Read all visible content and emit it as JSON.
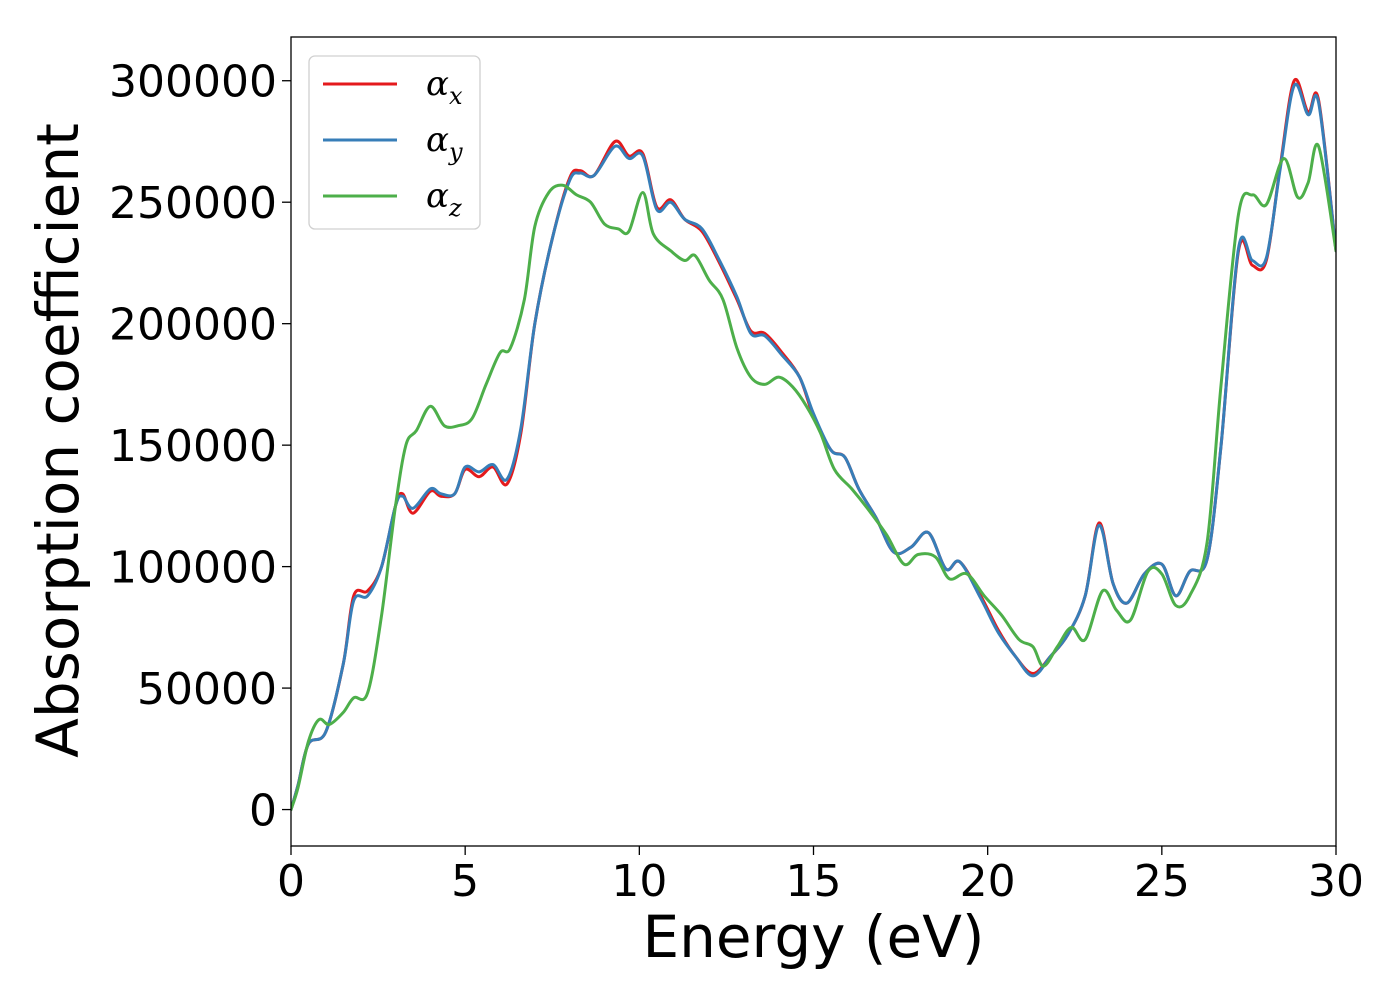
{
  "chart_data": {
    "type": "line",
    "xlabel": "Energy (eV)",
    "ylabel": "Absorption coefficient",
    "xlim": [
      0,
      30
    ],
    "ylim": [
      -15000,
      318000
    ],
    "xticks": [
      0,
      5,
      10,
      15,
      20,
      25,
      30
    ],
    "xtick_labels": [
      "0",
      "5",
      "10",
      "15",
      "20",
      "25",
      "30"
    ],
    "yticks": [
      0,
      50000,
      100000,
      150000,
      200000,
      250000,
      300000
    ],
    "ytick_labels": [
      "0",
      "50000",
      "100000",
      "150000",
      "200000",
      "250000",
      "300000"
    ],
    "grid": false,
    "legend_position": "top-left",
    "series": [
      {
        "name": "α",
        "subscript": "x",
        "color": "#e41a1c",
        "points": [
          [
            0,
            0
          ],
          [
            0.2,
            10000
          ],
          [
            0.5,
            27000
          ],
          [
            1,
            32000
          ],
          [
            1.5,
            60000
          ],
          [
            1.8,
            88000
          ],
          [
            2.2,
            90000
          ],
          [
            2.6,
            100000
          ],
          [
            3,
            125000
          ],
          [
            3.2,
            130000
          ],
          [
            3.5,
            122000
          ],
          [
            4,
            131000
          ],
          [
            4.3,
            129000
          ],
          [
            4.7,
            130000
          ],
          [
            5,
            140000
          ],
          [
            5.4,
            137000
          ],
          [
            5.8,
            141000
          ],
          [
            6.2,
            134000
          ],
          [
            6.6,
            155000
          ],
          [
            7,
            200000
          ],
          [
            7.5,
            235000
          ],
          [
            8,
            260000
          ],
          [
            8.3,
            263000
          ],
          [
            8.7,
            261000
          ],
          [
            9.3,
            275000
          ],
          [
            9.7,
            269000
          ],
          [
            10.1,
            270000
          ],
          [
            10.5,
            248000
          ],
          [
            10.9,
            251000
          ],
          [
            11.3,
            243000
          ],
          [
            11.8,
            238000
          ],
          [
            12.3,
            225000
          ],
          [
            12.8,
            210000
          ],
          [
            13.2,
            197000
          ],
          [
            13.6,
            196000
          ],
          [
            14.1,
            188000
          ],
          [
            14.6,
            178000
          ],
          [
            15,
            162000
          ],
          [
            15.5,
            148000
          ],
          [
            15.9,
            145000
          ],
          [
            16.3,
            132000
          ],
          [
            16.8,
            120000
          ],
          [
            17.3,
            106000
          ],
          [
            17.8,
            108000
          ],
          [
            18.3,
            114000
          ],
          [
            18.8,
            99000
          ],
          [
            19.2,
            102000
          ],
          [
            19.8,
            88000
          ],
          [
            20.3,
            74000
          ],
          [
            20.8,
            63000
          ],
          [
            21.3,
            56000
          ],
          [
            21.8,
            63000
          ],
          [
            22.3,
            72000
          ],
          [
            22.8,
            88000
          ],
          [
            23.2,
            118000
          ],
          [
            23.6,
            93000
          ],
          [
            24,
            85000
          ],
          [
            24.5,
            97000
          ],
          [
            25,
            101000
          ],
          [
            25.4,
            88000
          ],
          [
            25.8,
            98000
          ],
          [
            26.3,
            103000
          ],
          [
            26.7,
            150000
          ],
          [
            27.2,
            230000
          ],
          [
            27.6,
            224000
          ],
          [
            28,
            226000
          ],
          [
            28.4,
            265000
          ],
          [
            28.8,
            300000
          ],
          [
            29.2,
            287000
          ],
          [
            29.5,
            292000
          ],
          [
            30,
            230000
          ]
        ]
      },
      {
        "name": "α",
        "subscript": "y",
        "color": "#377eb8",
        "points": [
          [
            0,
            0
          ],
          [
            0.2,
            10000
          ],
          [
            0.5,
            27000
          ],
          [
            1,
            32000
          ],
          [
            1.5,
            60000
          ],
          [
            1.8,
            86000
          ],
          [
            2.2,
            88000
          ],
          [
            2.6,
            100000
          ],
          [
            3,
            125000
          ],
          [
            3.2,
            129000
          ],
          [
            3.5,
            124000
          ],
          [
            4,
            132000
          ],
          [
            4.3,
            130000
          ],
          [
            4.7,
            130000
          ],
          [
            5,
            141000
          ],
          [
            5.4,
            139000
          ],
          [
            5.8,
            142000
          ],
          [
            6.2,
            136000
          ],
          [
            6.6,
            157000
          ],
          [
            7,
            200000
          ],
          [
            7.5,
            235000
          ],
          [
            8,
            259000
          ],
          [
            8.3,
            262000
          ],
          [
            8.7,
            261000
          ],
          [
            9.3,
            273000
          ],
          [
            9.7,
            268000
          ],
          [
            10.1,
            269000
          ],
          [
            10.5,
            247000
          ],
          [
            10.9,
            250000
          ],
          [
            11.3,
            243000
          ],
          [
            11.8,
            239000
          ],
          [
            12.3,
            226000
          ],
          [
            12.8,
            211000
          ],
          [
            13.2,
            196000
          ],
          [
            13.6,
            195000
          ],
          [
            14.1,
            187000
          ],
          [
            14.6,
            178000
          ],
          [
            15,
            163000
          ],
          [
            15.5,
            148000
          ],
          [
            15.9,
            145000
          ],
          [
            16.3,
            132000
          ],
          [
            16.8,
            120000
          ],
          [
            17.3,
            106000
          ],
          [
            17.8,
            108000
          ],
          [
            18.3,
            114000
          ],
          [
            18.8,
            99000
          ],
          [
            19.2,
            102000
          ],
          [
            19.8,
            87000
          ],
          [
            20.3,
            73000
          ],
          [
            20.8,
            63000
          ],
          [
            21.3,
            55000
          ],
          [
            21.8,
            63000
          ],
          [
            22.3,
            72000
          ],
          [
            22.8,
            88000
          ],
          [
            23.2,
            117000
          ],
          [
            23.6,
            93000
          ],
          [
            24,
            85000
          ],
          [
            24.5,
            97000
          ],
          [
            25,
            101000
          ],
          [
            25.4,
            88000
          ],
          [
            25.8,
            98000
          ],
          [
            26.3,
            103000
          ],
          [
            26.7,
            150000
          ],
          [
            27.2,
            231000
          ],
          [
            27.6,
            226000
          ],
          [
            28,
            227000
          ],
          [
            28.4,
            264000
          ],
          [
            28.8,
            298000
          ],
          [
            29.2,
            286000
          ],
          [
            29.5,
            291000
          ],
          [
            30,
            230000
          ]
        ]
      },
      {
        "name": "α",
        "subscript": "z",
        "color": "#4daf4a",
        "points": [
          [
            0,
            0
          ],
          [
            0.2,
            9000
          ],
          [
            0.5,
            28000
          ],
          [
            0.8,
            37000
          ],
          [
            1.1,
            35000
          ],
          [
            1.5,
            40000
          ],
          [
            1.8,
            46000
          ],
          [
            2.2,
            48000
          ],
          [
            2.6,
            80000
          ],
          [
            3,
            125000
          ],
          [
            3.3,
            150000
          ],
          [
            3.6,
            156000
          ],
          [
            4,
            166000
          ],
          [
            4.4,
            158000
          ],
          [
            4.8,
            158000
          ],
          [
            5.2,
            161000
          ],
          [
            5.6,
            175000
          ],
          [
            6,
            188000
          ],
          [
            6.3,
            190000
          ],
          [
            6.7,
            210000
          ],
          [
            7,
            240000
          ],
          [
            7.4,
            254000
          ],
          [
            7.8,
            257000
          ],
          [
            8.2,
            253000
          ],
          [
            8.6,
            250000
          ],
          [
            9,
            241000
          ],
          [
            9.4,
            239000
          ],
          [
            9.7,
            238000
          ],
          [
            10.1,
            254000
          ],
          [
            10.4,
            237000
          ],
          [
            10.9,
            230000
          ],
          [
            11.3,
            226000
          ],
          [
            11.6,
            228000
          ],
          [
            12,
            218000
          ],
          [
            12.4,
            210000
          ],
          [
            12.8,
            190000
          ],
          [
            13.2,
            178000
          ],
          [
            13.6,
            175000
          ],
          [
            14,
            178000
          ],
          [
            14.4,
            174000
          ],
          [
            14.8,
            166000
          ],
          [
            15.2,
            155000
          ],
          [
            15.6,
            140000
          ],
          [
            16.1,
            132000
          ],
          [
            16.6,
            123000
          ],
          [
            17.1,
            113000
          ],
          [
            17.6,
            101000
          ],
          [
            18,
            105000
          ],
          [
            18.5,
            104000
          ],
          [
            18.9,
            95000
          ],
          [
            19.4,
            97000
          ],
          [
            19.9,
            88000
          ],
          [
            20.4,
            80000
          ],
          [
            20.9,
            70000
          ],
          [
            21.3,
            67000
          ],
          [
            21.6,
            59000
          ],
          [
            22,
            67000
          ],
          [
            22.4,
            75000
          ],
          [
            22.8,
            70000
          ],
          [
            23.3,
            90000
          ],
          [
            23.7,
            82000
          ],
          [
            24.1,
            78000
          ],
          [
            24.6,
            98000
          ],
          [
            25,
            97000
          ],
          [
            25.4,
            84000
          ],
          [
            25.8,
            88000
          ],
          [
            26.3,
            110000
          ],
          [
            26.7,
            175000
          ],
          [
            27.2,
            245000
          ],
          [
            27.6,
            253000
          ],
          [
            28,
            249000
          ],
          [
            28.5,
            268000
          ],
          [
            28.9,
            252000
          ],
          [
            29.2,
            258000
          ],
          [
            29.5,
            273000
          ],
          [
            30,
            230000
          ]
        ]
      }
    ]
  }
}
